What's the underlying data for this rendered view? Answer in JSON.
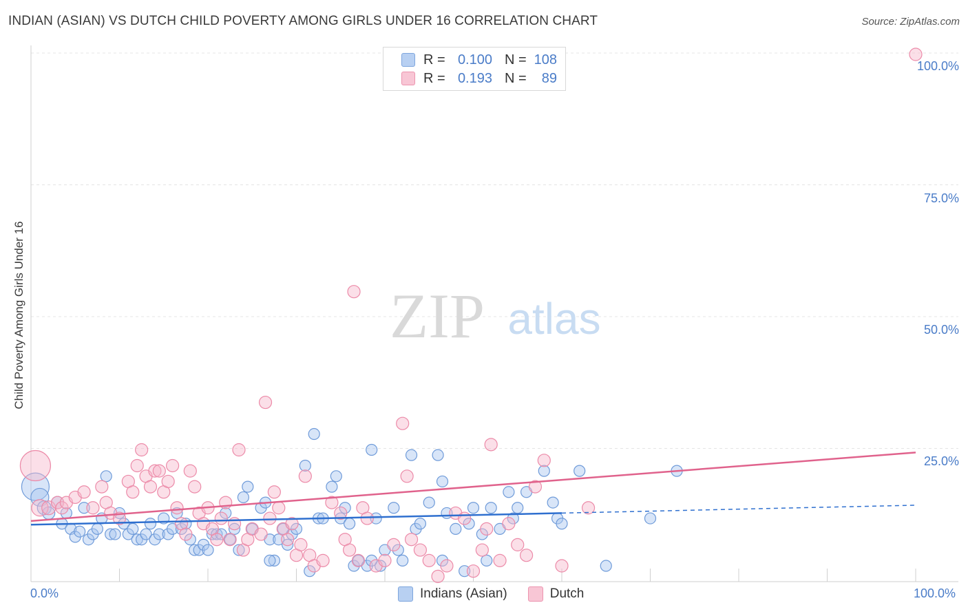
{
  "header": {
    "title": "INDIAN (ASIAN) VS DUTCH CHILD POVERTY AMONG GIRLS UNDER 16 CORRELATION CHART",
    "source": "Source: ZipAtlas.com"
  },
  "watermark": {
    "zip": "ZIP",
    "atlas": "atlas"
  },
  "legend": {
    "series1": {
      "r_label": "R =",
      "r_value": "0.100",
      "n_label": "N =",
      "n_value": "108"
    },
    "series2": {
      "r_label": "R =",
      "r_value": "0.193",
      "n_label": "N =",
      "n_value": "89"
    }
  },
  "colors": {
    "indians_fill": "#a9c6ef",
    "indians_stroke": "#6f9bd9",
    "indians_line": "#2e6fcf",
    "dutch_fill": "#f6b9cc",
    "dutch_stroke": "#ec8aa8",
    "dutch_line": "#e0628c",
    "axis_text": "#4a7cc8",
    "grid": "#e4e4e4"
  },
  "chart_data": {
    "type": "scatter",
    "title": "INDIAN (ASIAN) VS DUTCH CHILD POVERTY AMONG GIRLS UNDER 16 CORRELATION CHART",
    "ylabel": "Child Poverty Among Girls Under 16",
    "xlabel": "",
    "xlim": [
      0,
      100
    ],
    "ylim": [
      0,
      100
    ],
    "x_tick_labels": [
      "0.0%",
      "100.0%"
    ],
    "y_tick_labels": [
      "100.0%",
      "75.0%",
      "50.0%",
      "25.0%"
    ],
    "grid": true,
    "legend_position": "top-center",
    "series": [
      {
        "name": "Indians (Asian)",
        "r": 0.1,
        "n": 108,
        "trend": {
          "x": [
            0,
            60
          ],
          "y": [
            10.8,
            13.0
          ],
          "dashed_to": [
            100,
            14.5
          ]
        },
        "points": [
          [
            0.5,
            18,
            20
          ],
          [
            1,
            16,
            13
          ],
          [
            1.5,
            14,
            10
          ],
          [
            2,
            13,
            9
          ],
          [
            3,
            15,
            9
          ],
          [
            3.5,
            11,
            8
          ],
          [
            4,
            13,
            8
          ],
          [
            4.5,
            10,
            8
          ],
          [
            5,
            8.5,
            8
          ],
          [
            5.5,
            9.5,
            8
          ],
          [
            6,
            14,
            8
          ],
          [
            6.5,
            8,
            8
          ],
          [
            7,
            9,
            8
          ],
          [
            7.5,
            10,
            8
          ],
          [
            8,
            12,
            8
          ],
          [
            8.5,
            20,
            8
          ],
          [
            9,
            9,
            8
          ],
          [
            9.5,
            9,
            8
          ],
          [
            10,
            13,
            8
          ],
          [
            10.5,
            11,
            8
          ],
          [
            11,
            9,
            8
          ],
          [
            11.5,
            10,
            8
          ],
          [
            12,
            8,
            8
          ],
          [
            12.5,
            8,
            8
          ],
          [
            13,
            9,
            8
          ],
          [
            13.5,
            11,
            8
          ],
          [
            14,
            8,
            8
          ],
          [
            14.5,
            9,
            8
          ],
          [
            15,
            12,
            8
          ],
          [
            15.5,
            9,
            8
          ],
          [
            16,
            10,
            8
          ],
          [
            16.5,
            13,
            8
          ],
          [
            17,
            10,
            8
          ],
          [
            17.5,
            11,
            8
          ],
          [
            18,
            8,
            8
          ],
          [
            18.5,
            6,
            8
          ],
          [
            19,
            6,
            8
          ],
          [
            19.5,
            7,
            8
          ],
          [
            20,
            6,
            8
          ],
          [
            20.5,
            9,
            8
          ],
          [
            21,
            9,
            8
          ],
          [
            21.5,
            9,
            8
          ],
          [
            22,
            13,
            8
          ],
          [
            22.5,
            8,
            8
          ],
          [
            23,
            10,
            8
          ],
          [
            23.5,
            6,
            8
          ],
          [
            24,
            16,
            8
          ],
          [
            24.5,
            18,
            8
          ],
          [
            25,
            10,
            8
          ],
          [
            26,
            14,
            8
          ],
          [
            26.5,
            15,
            8
          ],
          [
            27,
            8,
            8
          ],
          [
            27.5,
            4,
            8
          ],
          [
            28,
            8,
            8
          ],
          [
            28.5,
            10,
            8
          ],
          [
            29,
            7,
            8
          ],
          [
            29.5,
            9,
            8
          ],
          [
            30,
            10,
            8
          ],
          [
            31,
            22,
            8
          ],
          [
            31.5,
            2,
            8
          ],
          [
            32,
            28,
            8
          ],
          [
            32.5,
            12,
            8
          ],
          [
            33,
            12,
            8
          ],
          [
            34,
            18,
            8
          ],
          [
            34.5,
            20,
            8
          ],
          [
            35,
            12,
            8
          ],
          [
            35.5,
            14,
            8
          ],
          [
            36,
            11,
            8
          ],
          [
            36.5,
            3,
            8
          ],
          [
            37,
            4,
            8
          ],
          [
            38,
            3,
            8
          ],
          [
            38.5,
            25,
            8
          ],
          [
            39,
            12,
            8
          ],
          [
            39.5,
            3,
            8
          ],
          [
            40,
            6,
            8
          ],
          [
            41,
            14,
            8
          ],
          [
            42,
            4,
            8
          ],
          [
            43,
            24,
            8
          ],
          [
            43.5,
            10,
            8
          ],
          [
            44,
            11,
            8
          ],
          [
            45,
            15,
            8
          ],
          [
            46,
            24,
            8
          ],
          [
            46.5,
            19,
            8
          ],
          [
            47,
            13,
            8
          ],
          [
            48,
            10,
            8
          ],
          [
            49,
            2,
            8
          ],
          [
            49.5,
            11,
            8
          ],
          [
            50,
            14,
            8
          ],
          [
            51,
            9,
            8
          ],
          [
            51.5,
            4,
            8
          ],
          [
            52,
            14,
            8
          ],
          [
            53,
            10,
            8
          ],
          [
            54,
            17,
            8
          ],
          [
            54.5,
            12,
            8
          ],
          [
            55,
            14,
            8
          ],
          [
            56,
            17,
            8
          ],
          [
            58,
            21,
            8
          ],
          [
            59,
            15,
            8
          ],
          [
            59.5,
            12,
            8
          ],
          [
            60,
            11,
            8
          ],
          [
            62,
            21,
            8
          ],
          [
            65,
            3,
            8
          ],
          [
            70,
            12,
            8
          ],
          [
            73,
            21,
            8
          ],
          [
            46.5,
            4,
            8
          ],
          [
            38.5,
            4,
            8
          ],
          [
            27,
            4,
            8
          ],
          [
            41.5,
            6,
            8
          ]
        ]
      },
      {
        "name": "Dutch",
        "r": 0.193,
        "n": 89,
        "trend": {
          "x": [
            0,
            100
          ],
          "y": [
            11.5,
            24.5
          ]
        },
        "points": [
          [
            0.5,
            22,
            22
          ],
          [
            1,
            14,
            12
          ],
          [
            2,
            14,
            10
          ],
          [
            3,
            15,
            9
          ],
          [
            3.5,
            14,
            9
          ],
          [
            4,
            15,
            9
          ],
          [
            5,
            16,
            9
          ],
          [
            6,
            17,
            9
          ],
          [
            7,
            14,
            9
          ],
          [
            8,
            18,
            9
          ],
          [
            8.5,
            15,
            9
          ],
          [
            9,
            13,
            9
          ],
          [
            10,
            12,
            9
          ],
          [
            11,
            19,
            9
          ],
          [
            11.5,
            17,
            9
          ],
          [
            12,
            22,
            9
          ],
          [
            12.5,
            25,
            9
          ],
          [
            13,
            20,
            9
          ],
          [
            13.5,
            18,
            9
          ],
          [
            14,
            21,
            9
          ],
          [
            14.5,
            21,
            9
          ],
          [
            15,
            17,
            9
          ],
          [
            15.5,
            19,
            9
          ],
          [
            16,
            22,
            9
          ],
          [
            16.5,
            14,
            9
          ],
          [
            17,
            11,
            9
          ],
          [
            17.5,
            9,
            9
          ],
          [
            18,
            21,
            9
          ],
          [
            18.5,
            18,
            9
          ],
          [
            19,
            13,
            9
          ],
          [
            19.5,
            11,
            9
          ],
          [
            20,
            14,
            9
          ],
          [
            20.5,
            10,
            9
          ],
          [
            21,
            8,
            9
          ],
          [
            21.5,
            12,
            9
          ],
          [
            22,
            15,
            9
          ],
          [
            22.5,
            8,
            9
          ],
          [
            23,
            11,
            9
          ],
          [
            23.5,
            25,
            9
          ],
          [
            24,
            6,
            9
          ],
          [
            24.5,
            8,
            9
          ],
          [
            25,
            10,
            9
          ],
          [
            26,
            9,
            9
          ],
          [
            26.5,
            34,
            9
          ],
          [
            27,
            12,
            9
          ],
          [
            27.5,
            17,
            9
          ],
          [
            28,
            14,
            9
          ],
          [
            28.5,
            10,
            9
          ],
          [
            29,
            8,
            9
          ],
          [
            29.5,
            11,
            9
          ],
          [
            30,
            5,
            9
          ],
          [
            30.5,
            7,
            9
          ],
          [
            31,
            20,
            9
          ],
          [
            31.5,
            5,
            9
          ],
          [
            32,
            3,
            9
          ],
          [
            33,
            4,
            9
          ],
          [
            34,
            15,
            9
          ],
          [
            35,
            13,
            9
          ],
          [
            35.5,
            8,
            9
          ],
          [
            36,
            6,
            9
          ],
          [
            36.5,
            55,
            9
          ],
          [
            37,
            4,
            9
          ],
          [
            37.5,
            14,
            9
          ],
          [
            38,
            12,
            9
          ],
          [
            39,
            3,
            9
          ],
          [
            40,
            4,
            9
          ],
          [
            41,
            7,
            9
          ],
          [
            42,
            30,
            9
          ],
          [
            42.5,
            20,
            9
          ],
          [
            43,
            8,
            9
          ],
          [
            44,
            6,
            9
          ],
          [
            45,
            4,
            9
          ],
          [
            46,
            1,
            9
          ],
          [
            47,
            3,
            9
          ],
          [
            48,
            13,
            9
          ],
          [
            49,
            12,
            9
          ],
          [
            50,
            2,
            9
          ],
          [
            51,
            6,
            9
          ],
          [
            51.5,
            10,
            9
          ],
          [
            52,
            26,
            9
          ],
          [
            53,
            4,
            9
          ],
          [
            54,
            11,
            9
          ],
          [
            55,
            7,
            9
          ],
          [
            56,
            5,
            9
          ],
          [
            57,
            18,
            9
          ],
          [
            58,
            23,
            9
          ],
          [
            60,
            3,
            9
          ],
          [
            63,
            14,
            9
          ],
          [
            100,
            100,
            9
          ]
        ]
      }
    ]
  },
  "bottom_legend": {
    "series1": "Indians (Asian)",
    "series2": "Dutch"
  },
  "axes": {
    "ylabel": "Child Poverty Among Girls Under 16",
    "y_ticks": [
      "100.0%",
      "75.0%",
      "50.0%",
      "25.0%"
    ],
    "x_min_label": "0.0%",
    "x_max_label": "100.0%"
  }
}
